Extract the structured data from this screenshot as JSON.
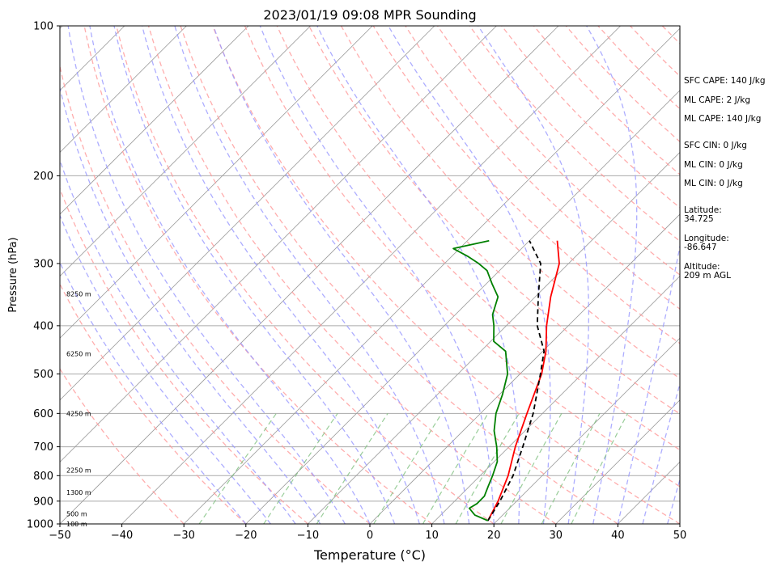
{
  "chart_data": {
    "type": "line",
    "title": "2023/01/19 09:08 MPR Sounding",
    "xlabel": "Temperature (°C)",
    "ylabel": "Pressure (hPa)",
    "xlim": [
      -50,
      50
    ],
    "ylim": [
      1000,
      100
    ],
    "y_scale": "log",
    "skew_t": true,
    "grid": true,
    "x_ticks": [
      -50,
      -40,
      -30,
      -20,
      -10,
      0,
      10,
      20,
      30,
      40,
      50
    ],
    "y_ticks": [
      100,
      200,
      300,
      400,
      500,
      600,
      700,
      800,
      900,
      1000
    ],
    "height_labels": [
      {
        "pressure": 1000,
        "text": "100 m"
      },
      {
        "pressure": 955,
        "text": "500 m"
      },
      {
        "pressure": 865,
        "text": "1300 m"
      },
      {
        "pressure": 780,
        "text": "2250 m"
      },
      {
        "pressure": 600,
        "text": "4250 m"
      },
      {
        "pressure": 455,
        "text": "6250 m"
      },
      {
        "pressure": 345,
        "text": "8250 m"
      }
    ],
    "series": [
      {
        "color": "#ff0000",
        "style": "solid",
        "pressure": [
          985,
          900,
          800,
          700,
          600,
          500,
          450,
          400,
          350,
          300,
          270
        ],
        "x": [
          18.5,
          17.0,
          14.5,
          11.0,
          7.5,
          3.5,
          0.5,
          -3.5,
          -7.5,
          -11.5,
          -15.5
        ]
      },
      {
        "color": "#000000",
        "style": "dashed",
        "pressure": [
          985,
          900,
          800,
          700,
          600,
          500,
          450,
          400,
          350,
          300,
          270
        ],
        "x": [
          18.5,
          17.3,
          15.3,
          12.2,
          8.5,
          3.3,
          0.2,
          -5.0,
          -9.5,
          -14.5,
          -20.0
        ]
      },
      {
        "color": "#008000",
        "style": "solid",
        "pressure": [
          985,
          960,
          930,
          910,
          880,
          840,
          800,
          750,
          700,
          650,
          600,
          550,
          500,
          450,
          430,
          400,
          380,
          350,
          330,
          310,
          300,
          290,
          280,
          270
        ],
        "x": [
          18.5,
          15.5,
          13.5,
          14.0,
          14.0,
          13.0,
          12.0,
          10.5,
          8.0,
          5.0,
          2.5,
          0.5,
          -2.0,
          -6.0,
          -9.5,
          -12.0,
          -14.0,
          -16.0,
          -19.0,
          -22.0,
          -24.5,
          -27.5,
          -31.0,
          -26.5
        ]
      }
    ],
    "side_notes": {
      "sfc_cape": "SFC CAPE: 140 J/kg",
      "ml_cape_1": "ML CAPE: 2 J/kg",
      "ml_cape_2": "ML CAPE: 140 J/kg",
      "sfc_cin": "SFC CIN: 0 J/kg",
      "ml_cin_1": "ML CIN: 0 J/kg",
      "ml_cin_2": "ML CIN: 0 J/kg",
      "latitude": "Latitude:\n34.725",
      "longitude": "Longitude:\n-86.647",
      "altitude": "Altitude:\n209 m AGL"
    },
    "background_lines": {
      "isotherm_color": "#999999",
      "dry_adiabat_color": "#ff9999",
      "moist_adiabat_color": "#9999ff",
      "mixing_ratio_color": "#80c080"
    }
  }
}
